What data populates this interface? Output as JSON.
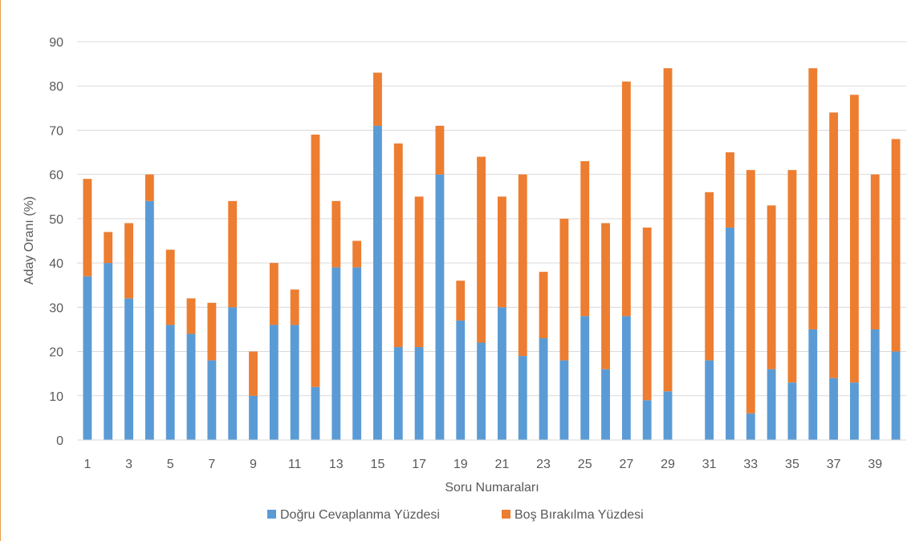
{
  "chart_data": {
    "type": "bar",
    "stacked": true,
    "xlabel": "Soru Numaraları",
    "ylabel": "Aday Oranı (%)",
    "ylim": [
      0,
      90
    ],
    "yticks": [
      0,
      10,
      20,
      30,
      40,
      50,
      60,
      70,
      80,
      90
    ],
    "grid": true,
    "legend_position": "bottom",
    "categories": [
      "1",
      "2",
      "3",
      "4",
      "5",
      "6",
      "7",
      "8",
      "9",
      "10",
      "11",
      "12",
      "13",
      "14",
      "15",
      "16",
      "17",
      "18",
      "19",
      "20",
      "21",
      "22",
      "23",
      "24",
      "25",
      "26",
      "27",
      "28",
      "29",
      "30",
      "31",
      "32",
      "33",
      "34",
      "35",
      "36",
      "37",
      "38",
      "39",
      "40"
    ],
    "xtick_labels": [
      "1",
      "",
      "3",
      "",
      "5",
      "",
      "7",
      "",
      "9",
      "",
      "11",
      "",
      "13",
      "",
      "15",
      "",
      "17",
      "",
      "19",
      "",
      "21",
      "",
      "23",
      "",
      "25",
      "",
      "27",
      "",
      "29",
      "",
      "31",
      "",
      "33",
      "",
      "35",
      "",
      "37",
      "",
      "39",
      ""
    ],
    "series": [
      {
        "name": "Doğru Cevaplanma Yüzdesi",
        "color": "#5b9bd5",
        "values": [
          37,
          40,
          32,
          54,
          26,
          24,
          18,
          30,
          10,
          26,
          26,
          12,
          39,
          39,
          71,
          21,
          21,
          60,
          27,
          22,
          30,
          19,
          23,
          18,
          28,
          16,
          28,
          9,
          11,
          0,
          18,
          48,
          6,
          16,
          13,
          25,
          14,
          13,
          25,
          20
        ]
      },
      {
        "name": "Boş Bırakılma Yüzdesi",
        "color": "#ed7d31",
        "values": [
          22,
          7,
          17,
          6,
          17,
          8,
          13,
          24,
          10,
          14,
          8,
          57,
          15,
          6,
          12,
          46,
          34,
          11,
          9,
          42,
          25,
          41,
          15,
          32,
          35,
          33,
          53,
          39,
          73,
          0,
          38,
          17,
          55,
          37,
          48,
          59,
          60,
          65,
          35,
          48
        ]
      }
    ]
  }
}
